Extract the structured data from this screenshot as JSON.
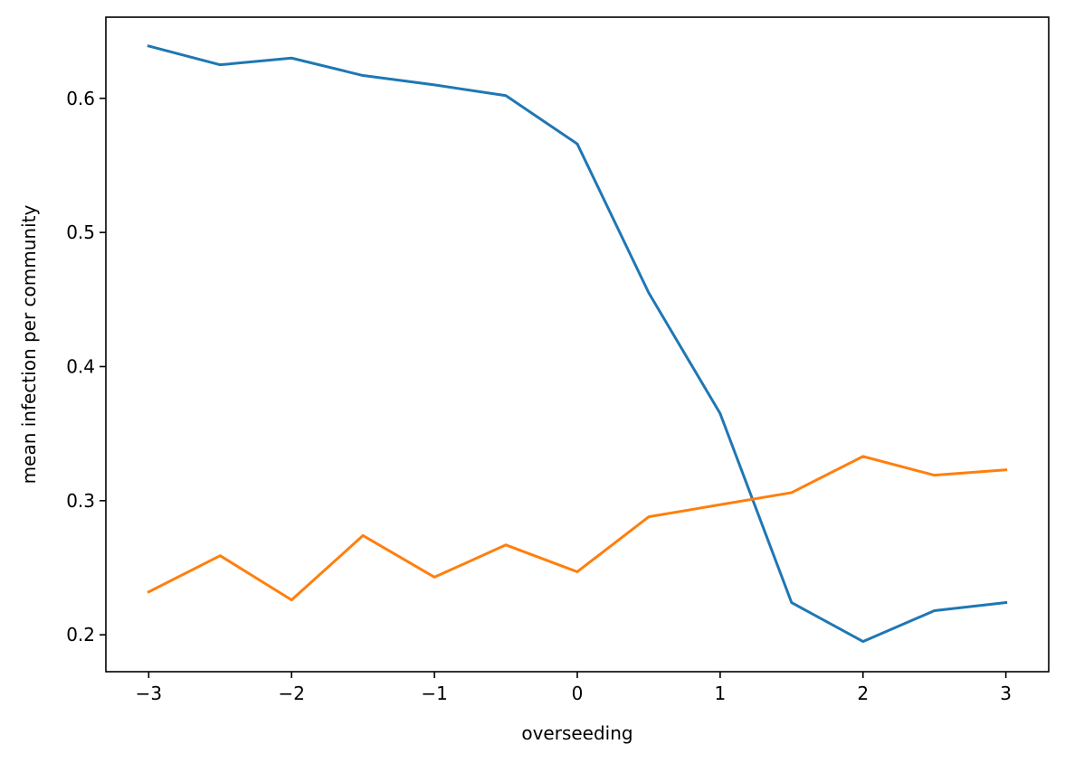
{
  "chart_data": {
    "type": "line",
    "title": "",
    "xlabel": "overseeding",
    "ylabel": "mean infection per community",
    "xlim": [
      -3.3,
      3.3
    ],
    "ylim": [
      0.1725,
      0.6605
    ],
    "xticks": [
      -3,
      -2,
      -1,
      0,
      1,
      2,
      3
    ],
    "xtick_labels": [
      "−3",
      "−2",
      "−1",
      "0",
      "1",
      "2",
      "3"
    ],
    "yticks": [
      0.2,
      0.3,
      0.4,
      0.5,
      0.6
    ],
    "ytick_labels": [
      "0.2",
      "0.3",
      "0.4",
      "0.5",
      "0.6"
    ],
    "grid": false,
    "legend": "none",
    "x": [
      -3,
      -2.5,
      -2,
      -1.5,
      -1,
      -0.5,
      0,
      0.5,
      1,
      1.5,
      2,
      2.5,
      3
    ],
    "series": [
      {
        "color": "#1f77b4",
        "values": [
          0.639,
          0.625,
          0.63,
          0.617,
          0.61,
          0.602,
          0.566,
          0.455,
          0.365,
          0.224,
          0.195,
          0.218,
          0.224
        ]
      },
      {
        "color": "#ff7f0e",
        "values": [
          0.232,
          0.259,
          0.226,
          0.274,
          0.243,
          0.267,
          0.247,
          0.288,
          0.297,
          0.306,
          0.333,
          0.319,
          0.323
        ]
      }
    ]
  }
}
